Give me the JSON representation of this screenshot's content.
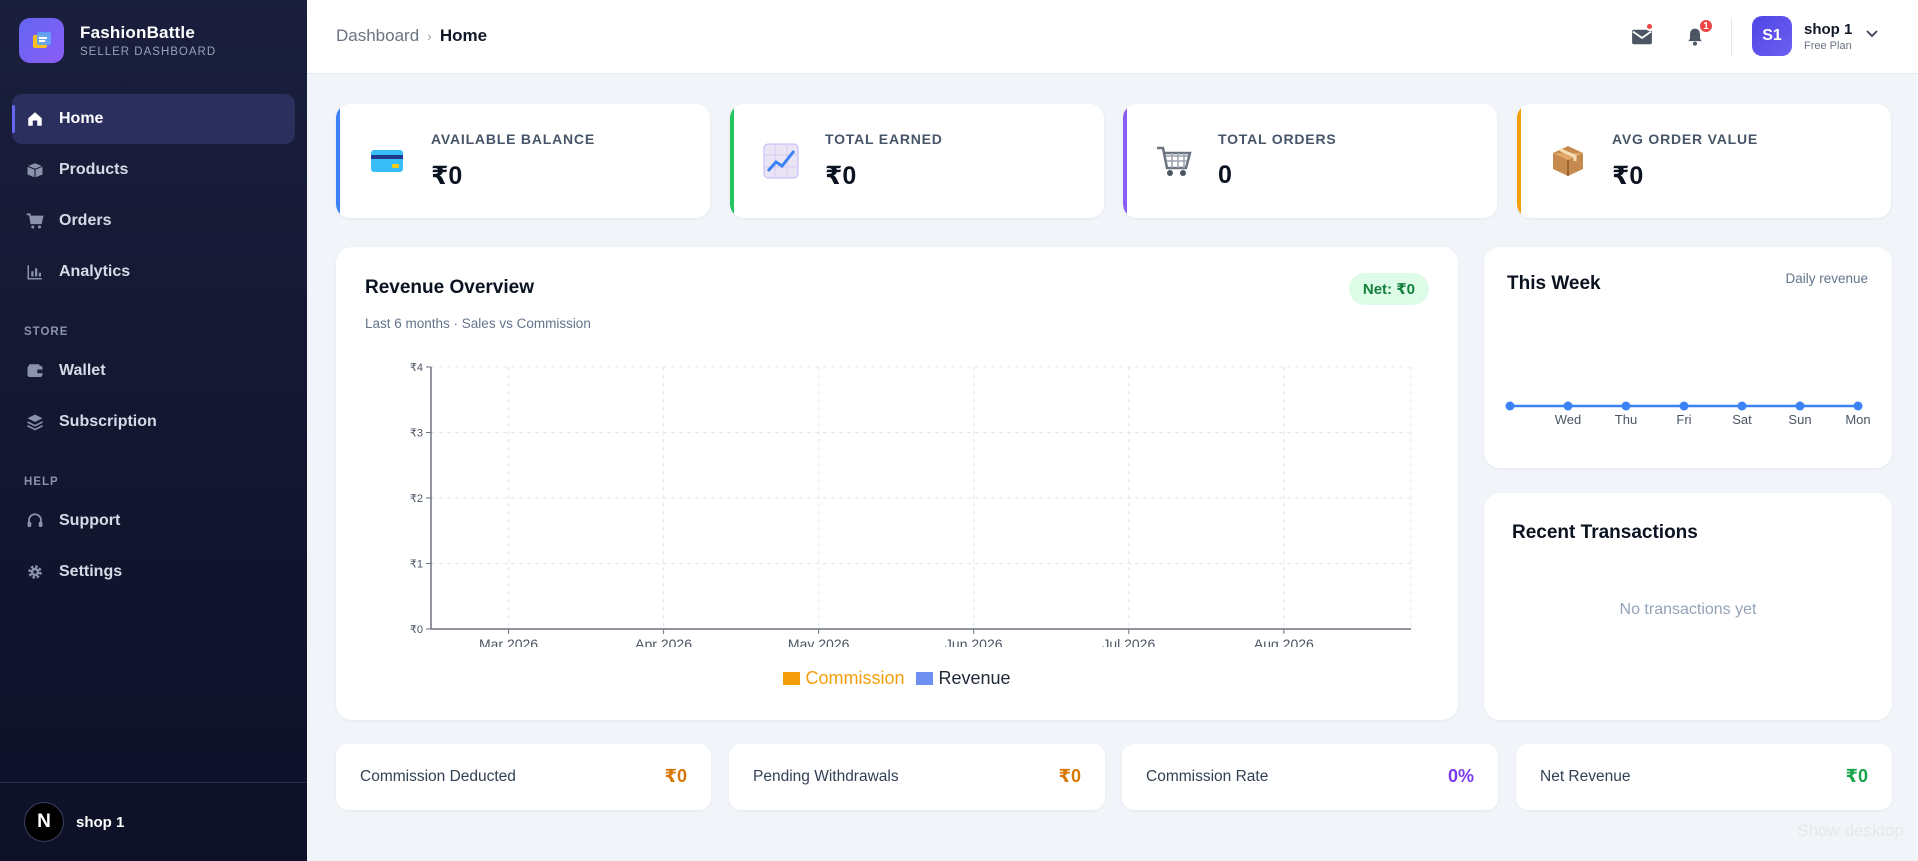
{
  "brand": {
    "name": "FashionBattle",
    "subtitle": "SELLER DASHBOARD"
  },
  "sidebar": {
    "items": [
      {
        "label": "Home",
        "icon": "home-icon",
        "active": true
      },
      {
        "label": "Products",
        "icon": "box-icon"
      },
      {
        "label": "Orders",
        "icon": "cart-icon"
      },
      {
        "label": "Analytics",
        "icon": "bar-chart-icon"
      }
    ],
    "store_section": "STORE",
    "store_items": [
      {
        "label": "Wallet",
        "icon": "wallet-icon"
      },
      {
        "label": "Subscription",
        "icon": "layers-icon"
      }
    ],
    "help_section": "HELP",
    "help_items": [
      {
        "label": "Support",
        "icon": "headset-icon"
      },
      {
        "label": "Settings",
        "icon": "gear-icon"
      }
    ],
    "footer": {
      "avatar_letter": "N",
      "user": "shop 1"
    }
  },
  "header": {
    "breadcrumb": {
      "parent": "Dashboard",
      "current": "Home"
    },
    "notifications_count": "1",
    "profile": {
      "initials": "S1",
      "name": "shop 1",
      "plan": "Free Plan"
    }
  },
  "stats": [
    {
      "label": "AVAILABLE BALANCE",
      "value": "₹0",
      "icon": "credit-card-icon",
      "accent": "#3b82f6"
    },
    {
      "label": "TOTAL EARNED",
      "value": "₹0",
      "icon": "trend-chart-icon",
      "accent": "#22c55e"
    },
    {
      "label": "TOTAL ORDERS",
      "value": "0",
      "icon": "cart-icon",
      "accent": "#8b5cf6"
    },
    {
      "label": "AVG ORDER VALUE",
      "value": "₹0",
      "icon": "package-icon",
      "accent": "#f59e0b"
    }
  ],
  "revenue": {
    "title": "Revenue Overview",
    "subtitle": "Last 6 months · Sales vs Commission",
    "net": "Net: ₹0"
  },
  "week": {
    "title": "This Week",
    "subtitle": "Daily revenue"
  },
  "transactions": {
    "title": "Recent Transactions",
    "empty": "No transactions yet"
  },
  "summary": [
    {
      "label": "Commission Deducted",
      "value": "₹0",
      "color": "#d97706"
    },
    {
      "label": "Pending Withdrawals",
      "value": "₹0",
      "color": "#d97706"
    },
    {
      "label": "Commission Rate",
      "value": "0%",
      "color": "#7c3aed"
    },
    {
      "label": "Net Revenue",
      "value": "₹0",
      "color": "#16a34a"
    }
  ],
  "watermark": "Show desktop",
  "chart_data": [
    {
      "type": "bar",
      "categories": [
        "Mar 2026",
        "Apr 2026",
        "May 2026",
        "Jun 2026",
        "Jul 2026",
        "Aug 2026"
      ],
      "series": [
        {
          "name": "Commission",
          "values": [
            0,
            0,
            0,
            0,
            0,
            0
          ],
          "color": "#f59e0b"
        },
        {
          "name": "Revenue",
          "values": [
            0,
            0,
            0,
            0,
            0,
            0
          ],
          "color": "#6f8ff0"
        }
      ],
      "yticks": [
        "₹0",
        "₹1",
        "₹2",
        "₹3",
        "₹4"
      ],
      "ylim": [
        0,
        4
      ],
      "grid": true,
      "legend": "bottom"
    },
    {
      "type": "line",
      "categories": [
        "",
        "Wed",
        "Thu",
        "Fri",
        "Sat",
        "Sun",
        "Mon"
      ],
      "values": [
        0,
        0,
        0,
        0,
        0,
        0,
        0
      ],
      "color": "#3b82f6",
      "grid": false
    }
  ]
}
